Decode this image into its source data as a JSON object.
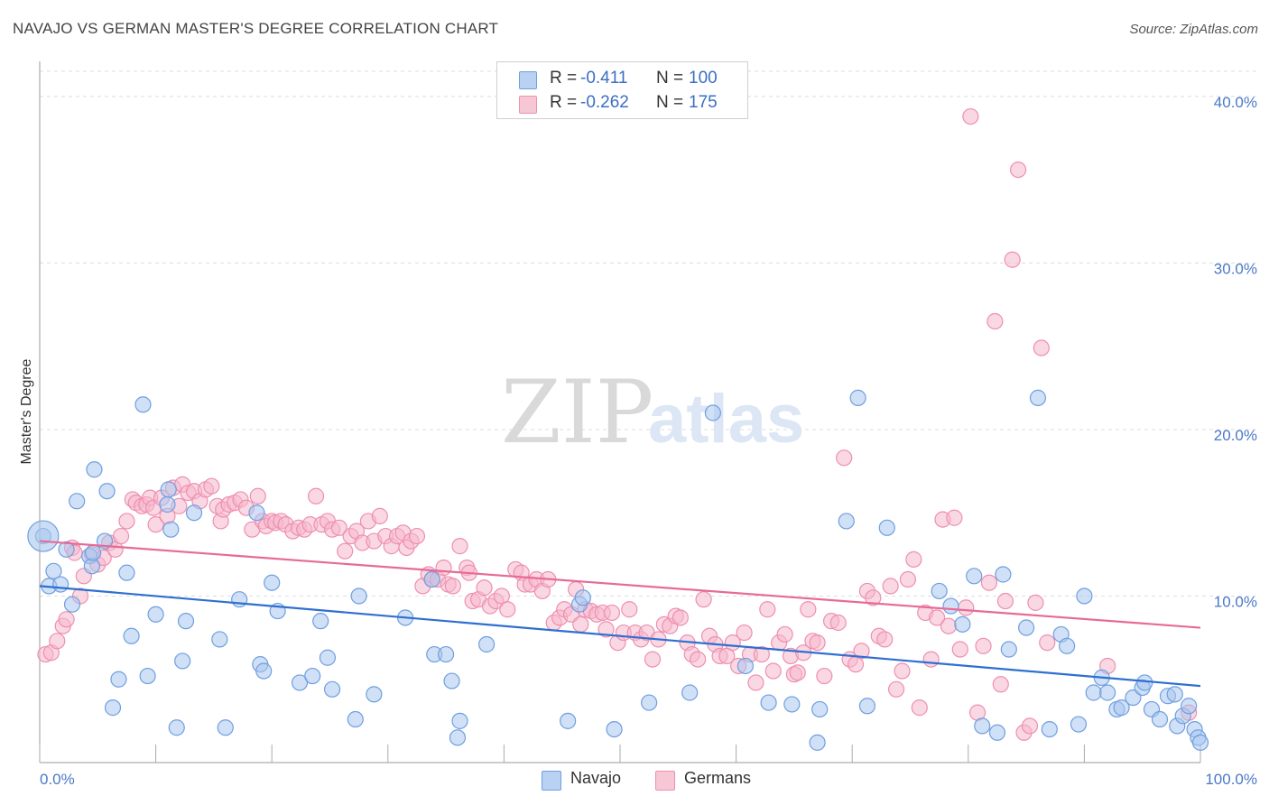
{
  "header": {
    "title": "NAVAJO VS GERMAN MASTER'S DEGREE CORRELATION CHART",
    "source": "Source: ZipAtlas.com"
  },
  "watermark": {
    "zip": "ZIP",
    "atlas": "atlas"
  },
  "legend": {
    "rows": [
      {
        "r_label": "R =",
        "r_value": "-0.411",
        "n_label": "N =",
        "n_value": "100"
      },
      {
        "r_label": "R =",
        "r_value": "-0.262",
        "n_label": "N =",
        "n_value": "175"
      }
    ]
  },
  "bottom_legend": {
    "navajo": "Navajo",
    "germans": "Germans"
  },
  "colors": {
    "navajo_fill": "#a9c6ef",
    "navajo_stroke": "#6f9fe0",
    "navajo_line": "#2f6fd0",
    "germans_fill": "#f6b8cc",
    "germans_stroke": "#ee8fb0",
    "germans_line": "#e76a97",
    "tick_label": "#4a79c8",
    "grid": "#dddddd"
  },
  "chart_data": {
    "type": "scatter",
    "title": "NAVAJO VS GERMAN MASTER'S DEGREE CORRELATION CHART",
    "xlabel": "",
    "ylabel": "Master's Degree",
    "xlim": [
      0,
      100
    ],
    "ylim": [
      0,
      42
    ],
    "x_tick_labels": [
      "0.0%",
      "100.0%"
    ],
    "y_ticks": [
      10,
      20,
      30,
      40
    ],
    "y_tick_labels": [
      "10.0%",
      "20.0%",
      "30.0%",
      "40.0%"
    ],
    "grid": true,
    "legend_position": "top-center",
    "series": [
      {
        "name": "Navajo",
        "trend": {
          "x0": 0,
          "y0": 10.6,
          "x1": 100,
          "y1": 4.6
        },
        "points": [
          [
            0.3,
            13.6
          ],
          [
            0.8,
            10.6
          ],
          [
            1.2,
            11.5
          ],
          [
            1.8,
            10.7
          ],
          [
            2.3,
            12.8
          ],
          [
            2.8,
            9.5
          ],
          [
            3.2,
            15.7
          ],
          [
            4.3,
            12.4
          ],
          [
            4.5,
            11.8
          ],
          [
            4.6,
            12.6
          ],
          [
            4.7,
            17.6
          ],
          [
            5.6,
            13.3
          ],
          [
            5.8,
            16.3
          ],
          [
            6.3,
            3.3
          ],
          [
            6.8,
            5.0
          ],
          [
            7.5,
            11.4
          ],
          [
            7.9,
            7.6
          ],
          [
            8.9,
            21.5
          ],
          [
            9.3,
            5.2
          ],
          [
            10.0,
            8.9
          ],
          [
            11.0,
            15.5
          ],
          [
            11.1,
            16.4
          ],
          [
            11.3,
            14.0
          ],
          [
            11.8,
            2.1
          ],
          [
            12.3,
            6.1
          ],
          [
            12.6,
            8.5
          ],
          [
            13.3,
            15.0
          ],
          [
            15.5,
            7.4
          ],
          [
            16.0,
            2.1
          ],
          [
            17.2,
            9.8
          ],
          [
            18.7,
            15.0
          ],
          [
            19.0,
            5.9
          ],
          [
            19.3,
            5.5
          ],
          [
            20.0,
            10.8
          ],
          [
            20.5,
            9.1
          ],
          [
            22.4,
            4.8
          ],
          [
            23.5,
            5.2
          ],
          [
            24.2,
            8.5
          ],
          [
            24.8,
            6.3
          ],
          [
            25.2,
            4.4
          ],
          [
            27.2,
            2.6
          ],
          [
            27.5,
            10.0
          ],
          [
            28.8,
            4.1
          ],
          [
            31.5,
            8.7
          ],
          [
            33.8,
            11.0
          ],
          [
            34.0,
            6.5
          ],
          [
            35.0,
            6.5
          ],
          [
            35.5,
            4.9
          ],
          [
            36.0,
            1.5
          ],
          [
            36.2,
            2.5
          ],
          [
            38.5,
            7.1
          ],
          [
            45.5,
            2.5
          ],
          [
            46.5,
            9.5
          ],
          [
            46.8,
            9.9
          ],
          [
            49.5,
            2.0
          ],
          [
            52.5,
            3.6
          ],
          [
            56.0,
            4.2
          ],
          [
            58.0,
            21.0
          ],
          [
            60.8,
            5.8
          ],
          [
            62.8,
            3.6
          ],
          [
            64.8,
            3.5
          ],
          [
            67.0,
            1.2
          ],
          [
            67.2,
            3.2
          ],
          [
            69.5,
            14.5
          ],
          [
            70.5,
            21.9
          ],
          [
            71.3,
            3.4
          ],
          [
            73.0,
            14.1
          ],
          [
            77.5,
            10.3
          ],
          [
            78.5,
            9.4
          ],
          [
            79.5,
            8.3
          ],
          [
            80.5,
            11.2
          ],
          [
            81.2,
            2.2
          ],
          [
            82.5,
            1.8
          ],
          [
            83.0,
            11.3
          ],
          [
            83.5,
            6.8
          ],
          [
            85.0,
            8.1
          ],
          [
            86.0,
            21.9
          ],
          [
            87.0,
            2.0
          ],
          [
            88.0,
            7.7
          ],
          [
            88.5,
            7.0
          ],
          [
            89.5,
            2.3
          ],
          [
            90.0,
            10.0
          ],
          [
            90.8,
            4.2
          ],
          [
            91.5,
            5.1
          ],
          [
            92.0,
            4.2
          ],
          [
            92.8,
            3.2
          ],
          [
            93.2,
            3.3
          ],
          [
            94.2,
            3.9
          ],
          [
            95.0,
            4.5
          ],
          [
            95.2,
            4.8
          ],
          [
            95.8,
            3.2
          ],
          [
            96.5,
            2.6
          ],
          [
            97.2,
            4.0
          ],
          [
            97.8,
            4.1
          ],
          [
            98.0,
            2.2
          ],
          [
            98.5,
            2.8
          ],
          [
            99.0,
            3.4
          ],
          [
            99.5,
            2.0
          ],
          [
            99.8,
            1.5
          ],
          [
            100.0,
            1.2
          ]
        ]
      },
      {
        "name": "Germans",
        "trend": {
          "x0": 0,
          "y0": 13.3,
          "x1": 100,
          "y1": 8.1
        },
        "points": [
          [
            0.5,
            6.5
          ],
          [
            1.0,
            6.6
          ],
          [
            1.5,
            7.3
          ],
          [
            2.0,
            8.2
          ],
          [
            2.3,
            8.6
          ],
          [
            2.8,
            12.9
          ],
          [
            3.0,
            12.6
          ],
          [
            3.5,
            10.0
          ],
          [
            3.8,
            11.2
          ],
          [
            4.5,
            12.5
          ],
          [
            5.0,
            11.9
          ],
          [
            5.5,
            12.3
          ],
          [
            6.0,
            13.2
          ],
          [
            6.5,
            12.8
          ],
          [
            7.0,
            13.6
          ],
          [
            7.5,
            14.5
          ],
          [
            8.0,
            15.8
          ],
          [
            8.3,
            15.6
          ],
          [
            8.8,
            15.4
          ],
          [
            9.2,
            15.5
          ],
          [
            9.5,
            15.9
          ],
          [
            9.8,
            15.3
          ],
          [
            10.0,
            14.3
          ],
          [
            10.5,
            15.9
          ],
          [
            11.0,
            14.8
          ],
          [
            11.5,
            16.5
          ],
          [
            12.0,
            15.4
          ],
          [
            12.3,
            16.7
          ],
          [
            12.8,
            16.2
          ],
          [
            13.3,
            16.3
          ],
          [
            13.8,
            15.7
          ],
          [
            14.3,
            16.4
          ],
          [
            14.8,
            16.6
          ],
          [
            15.3,
            15.4
          ],
          [
            15.6,
            14.5
          ],
          [
            15.8,
            15.2
          ],
          [
            16.3,
            15.5
          ],
          [
            16.8,
            15.6
          ],
          [
            17.3,
            15.8
          ],
          [
            17.8,
            15.3
          ],
          [
            18.3,
            14.0
          ],
          [
            18.8,
            16.0
          ],
          [
            19.2,
            14.5
          ],
          [
            19.5,
            14.2
          ],
          [
            20.0,
            14.5
          ],
          [
            20.3,
            14.4
          ],
          [
            20.8,
            14.5
          ],
          [
            21.2,
            14.3
          ],
          [
            21.8,
            13.9
          ],
          [
            22.3,
            14.1
          ],
          [
            22.8,
            14.0
          ],
          [
            23.3,
            14.3
          ],
          [
            23.8,
            16.0
          ],
          [
            24.3,
            14.3
          ],
          [
            24.8,
            14.5
          ],
          [
            25.2,
            14.0
          ],
          [
            25.8,
            14.1
          ],
          [
            26.3,
            12.7
          ],
          [
            26.8,
            13.6
          ],
          [
            27.3,
            13.9
          ],
          [
            27.8,
            13.2
          ],
          [
            28.3,
            14.5
          ],
          [
            28.8,
            13.3
          ],
          [
            29.3,
            14.8
          ],
          [
            29.8,
            13.6
          ],
          [
            30.3,
            13.0
          ],
          [
            30.8,
            13.6
          ],
          [
            31.3,
            13.8
          ],
          [
            31.6,
            12.9
          ],
          [
            32.0,
            13.3
          ],
          [
            32.5,
            13.6
          ],
          [
            33.0,
            10.6
          ],
          [
            33.5,
            11.3
          ],
          [
            33.8,
            11.0
          ],
          [
            34.3,
            11.0
          ],
          [
            34.8,
            11.7
          ],
          [
            35.2,
            10.7
          ],
          [
            35.6,
            10.6
          ],
          [
            36.2,
            13.0
          ],
          [
            36.8,
            11.7
          ],
          [
            37.0,
            11.4
          ],
          [
            37.3,
            9.7
          ],
          [
            37.8,
            9.8
          ],
          [
            38.3,
            10.5
          ],
          [
            38.8,
            9.4
          ],
          [
            39.3,
            9.7
          ],
          [
            39.8,
            10.0
          ],
          [
            40.3,
            9.2
          ],
          [
            41.0,
            11.6
          ],
          [
            41.5,
            11.4
          ],
          [
            41.8,
            10.7
          ],
          [
            42.3,
            10.7
          ],
          [
            42.8,
            11.0
          ],
          [
            43.3,
            10.3
          ],
          [
            43.8,
            11.0
          ],
          [
            44.3,
            8.4
          ],
          [
            44.8,
            8.7
          ],
          [
            45.2,
            9.2
          ],
          [
            45.8,
            8.9
          ],
          [
            46.2,
            10.4
          ],
          [
            46.6,
            8.3
          ],
          [
            47.0,
            9.2
          ],
          [
            47.5,
            9.1
          ],
          [
            48.0,
            8.9
          ],
          [
            48.5,
            9.0
          ],
          [
            48.8,
            8.0
          ],
          [
            49.3,
            9.0
          ],
          [
            49.8,
            7.2
          ],
          [
            50.3,
            7.8
          ],
          [
            50.8,
            9.2
          ],
          [
            51.3,
            7.8
          ],
          [
            51.8,
            7.4
          ],
          [
            52.3,
            7.8
          ],
          [
            52.8,
            6.2
          ],
          [
            53.3,
            7.4
          ],
          [
            53.8,
            8.3
          ],
          [
            54.3,
            8.2
          ],
          [
            54.8,
            8.8
          ],
          [
            55.2,
            8.7
          ],
          [
            55.8,
            7.2
          ],
          [
            56.2,
            6.5
          ],
          [
            56.7,
            6.2
          ],
          [
            57.2,
            9.8
          ],
          [
            57.7,
            7.6
          ],
          [
            58.2,
            7.1
          ],
          [
            58.6,
            6.4
          ],
          [
            59.2,
            6.4
          ],
          [
            59.7,
            7.2
          ],
          [
            60.2,
            5.8
          ],
          [
            60.7,
            7.8
          ],
          [
            61.2,
            6.5
          ],
          [
            61.7,
            4.8
          ],
          [
            62.2,
            6.5
          ],
          [
            62.7,
            9.2
          ],
          [
            63.2,
            5.5
          ],
          [
            63.7,
            7.2
          ],
          [
            64.2,
            7.7
          ],
          [
            64.7,
            6.4
          ],
          [
            65.0,
            5.3
          ],
          [
            65.3,
            5.4
          ],
          [
            65.8,
            6.6
          ],
          [
            66.2,
            9.2
          ],
          [
            66.6,
            7.3
          ],
          [
            67.0,
            7.2
          ],
          [
            67.6,
            5.2
          ],
          [
            68.2,
            8.5
          ],
          [
            68.8,
            8.4
          ],
          [
            69.3,
            18.3
          ],
          [
            69.8,
            6.2
          ],
          [
            70.3,
            5.9
          ],
          [
            70.8,
            6.7
          ],
          [
            71.3,
            10.3
          ],
          [
            71.8,
            9.9
          ],
          [
            72.3,
            7.6
          ],
          [
            72.8,
            7.4
          ],
          [
            73.3,
            10.6
          ],
          [
            73.8,
            4.4
          ],
          [
            74.3,
            5.5
          ],
          [
            74.8,
            11.0
          ],
          [
            75.3,
            12.2
          ],
          [
            75.8,
            3.3
          ],
          [
            76.3,
            9.0
          ],
          [
            76.8,
            6.2
          ],
          [
            77.3,
            8.7
          ],
          [
            77.8,
            14.6
          ],
          [
            78.3,
            8.2
          ],
          [
            78.8,
            14.7
          ],
          [
            79.3,
            6.8
          ],
          [
            79.8,
            9.3
          ],
          [
            80.2,
            38.8
          ],
          [
            80.8,
            3.0
          ],
          [
            81.3,
            7.0
          ],
          [
            81.8,
            10.8
          ],
          [
            82.3,
            26.5
          ],
          [
            82.8,
            4.7
          ],
          [
            83.2,
            9.7
          ],
          [
            83.8,
            30.2
          ],
          [
            84.3,
            35.6
          ],
          [
            84.8,
            1.8
          ],
          [
            85.3,
            2.2
          ],
          [
            85.8,
            9.6
          ],
          [
            86.3,
            24.9
          ],
          [
            86.8,
            7.2
          ],
          [
            99.0,
            3.0
          ],
          [
            92.0,
            5.8
          ]
        ]
      }
    ]
  }
}
